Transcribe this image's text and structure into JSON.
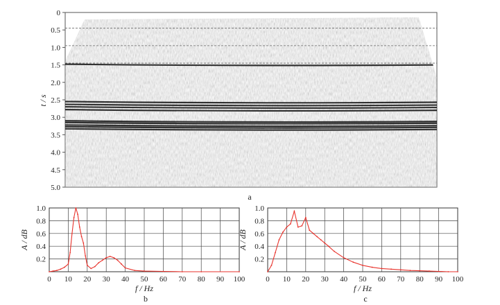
{
  "panel_labels": {
    "a": "a",
    "b": "b",
    "c": "c"
  },
  "chart_data": [
    {
      "id": "a",
      "type": "heatmap",
      "description_label": "a",
      "ylabel": "t / s",
      "ylim": [
        0,
        5.0
      ],
      "yticks": [
        "0",
        "0.5",
        "1.0",
        "1.5",
        "2.0",
        "2.5",
        "3.0",
        "3.5",
        "4.0",
        "4.5",
        "5.0"
      ],
      "dashed_reference_lines_s": [
        0.45,
        0.95,
        1.45
      ],
      "strong_reflectors_s": [
        1.48,
        2.55,
        2.63,
        2.7,
        2.78,
        3.1,
        3.15,
        3.22,
        3.27,
        3.33
      ]
    },
    {
      "id": "b",
      "type": "line",
      "color": "#e8322b",
      "xlabel": "f / Hz",
      "ylabel": "A / dB",
      "xlim": [
        0,
        100
      ],
      "ylim": [
        0,
        1.0
      ],
      "xticks": [
        "0",
        "10",
        "20",
        "30",
        "40",
        "50",
        "60",
        "70",
        "80",
        "90",
        "100"
      ],
      "yticks": [
        "0.2",
        "0.4",
        "0.6",
        "0.8",
        "1.0"
      ],
      "x": [
        0,
        2,
        4,
        6,
        8,
        10,
        11,
        12,
        13,
        14,
        15,
        16,
        17,
        18,
        19,
        20,
        22,
        24,
        26,
        28,
        30,
        32,
        34,
        36,
        38,
        40,
        45,
        50,
        60,
        70,
        80,
        100
      ],
      "values": [
        0.0,
        0.01,
        0.02,
        0.04,
        0.07,
        0.12,
        0.3,
        0.6,
        0.85,
        1.0,
        0.9,
        0.7,
        0.55,
        0.45,
        0.25,
        0.1,
        0.05,
        0.08,
        0.14,
        0.18,
        0.22,
        0.24,
        0.22,
        0.18,
        0.12,
        0.06,
        0.02,
        0.01,
        0.005,
        0.0,
        0.0,
        0.0
      ]
    },
    {
      "id": "c",
      "type": "line",
      "color": "#e8322b",
      "xlabel": "f / Hz",
      "ylabel": "A / dB",
      "xlim": [
        0,
        100
      ],
      "ylim": [
        0,
        1.0
      ],
      "xticks": [
        "0",
        "10",
        "20",
        "30",
        "40",
        "50",
        "60",
        "70",
        "80",
        "90",
        "100"
      ],
      "yticks": [
        "0.2",
        "0.4",
        "0.6",
        "0.8",
        "1.0"
      ],
      "x": [
        0,
        2,
        4,
        6,
        8,
        10,
        12,
        14,
        16,
        18,
        20,
        22,
        24,
        26,
        28,
        30,
        32,
        35,
        40,
        45,
        50,
        55,
        60,
        65,
        70,
        75,
        80,
        85,
        90,
        95,
        100
      ],
      "values": [
        0.0,
        0.1,
        0.3,
        0.5,
        0.62,
        0.7,
        0.75,
        0.95,
        0.7,
        0.72,
        0.85,
        0.65,
        0.6,
        0.55,
        0.5,
        0.45,
        0.4,
        0.32,
        0.22,
        0.15,
        0.1,
        0.07,
        0.05,
        0.04,
        0.03,
        0.02,
        0.015,
        0.01,
        0.005,
        0.0,
        0.0
      ]
    }
  ]
}
